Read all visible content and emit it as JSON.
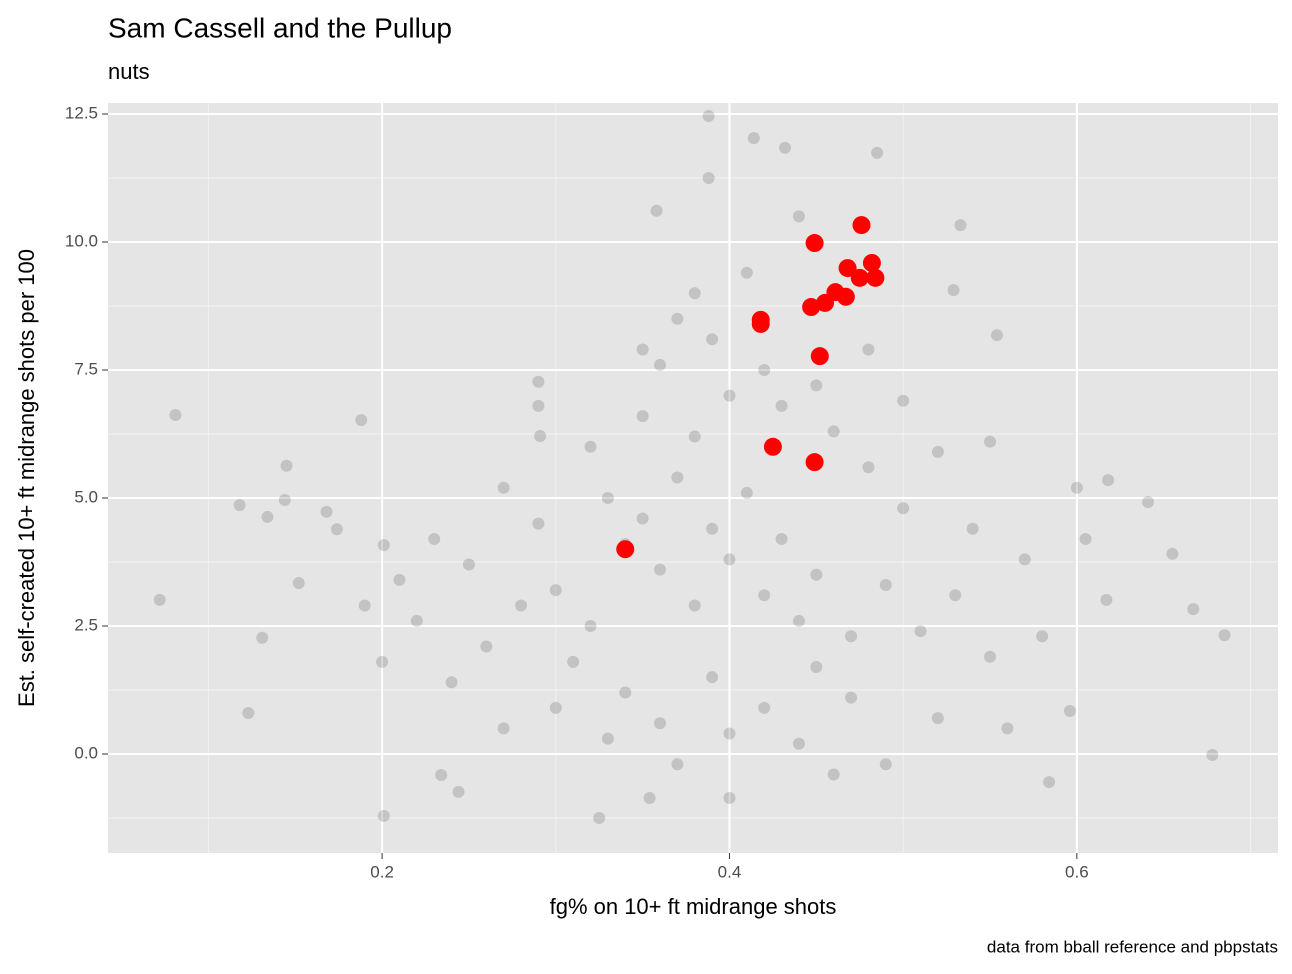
{
  "chart_data": {
    "type": "scatter",
    "title": "Sam Cassell and the Pullup",
    "subtitle": "nuts",
    "x_label": "fg% on 10+ ft midrange shots",
    "y_label": "Est. self-created 10+ ft midrange shots per 100",
    "caption": "data from bball reference and pbpstats",
    "xlim": [
      0.0422,
      0.7158
    ],
    "ylim": [
      -1.934,
      12.715
    ],
    "xticks": [
      0.2,
      0.4,
      0.6
    ],
    "yticks": [
      {
        "value": 0,
        "label": "0.0"
      },
      2.5,
      {
        "value": 5,
        "label": "5.0"
      },
      7.5,
      {
        "value": 10,
        "label": "10.0"
      },
      12.5
    ],
    "xminorticks": [
      0.1,
      0.3,
      0.5,
      0.7
    ],
    "yminorticks": [
      -1.25,
      1.25,
      3.75,
      6.25,
      8.75,
      11.25
    ],
    "grid": true,
    "series": [
      {
        "color": "#000000",
        "opacity": 0.15,
        "x": [
          0.072,
          0.081,
          0.118,
          0.123,
          0.134,
          0.144,
          0.145,
          0.131,
          0.152,
          0.168,
          0.174,
          0.188,
          0.201,
          0.201,
          0.678,
          0.685,
          0.667,
          0.655,
          0.641,
          0.618,
          0.617,
          0.605,
          0.596,
          0.584,
          0.533,
          0.529,
          0.554,
          0.388,
          0.414,
          0.485,
          0.432,
          0.388,
          0.358,
          0.325,
          0.4,
          0.354,
          0.291,
          0.29,
          0.244,
          0.234,
          0.3,
          0.32,
          0.34,
          0.36,
          0.38,
          0.4,
          0.42,
          0.44,
          0.33,
          0.35,
          0.37,
          0.39,
          0.41,
          0.43,
          0.45,
          0.31,
          0.34,
          0.36,
          0.39,
          0.42,
          0.45,
          0.47,
          0.28,
          0.26,
          0.25,
          0.29,
          0.27,
          0.32,
          0.35,
          0.38,
          0.4,
          0.43,
          0.46,
          0.48,
          0.5,
          0.49,
          0.51,
          0.47,
          0.44,
          0.4,
          0.37,
          0.33,
          0.3,
          0.24,
          0.22,
          0.23,
          0.27,
          0.29,
          0.36,
          0.39,
          0.42,
          0.45,
          0.48,
          0.5,
          0.52,
          0.54,
          0.53,
          0.55,
          0.52,
          0.49,
          0.46,
          0.38,
          0.41,
          0.44,
          0.37,
          0.35,
          0.55,
          0.57,
          0.58,
          0.56,
          0.21,
          0.2,
          0.19,
          0.6
        ],
        "values": [
          3.01,
          6.62,
          4.86,
          0.8,
          4.63,
          4.96,
          5.63,
          2.27,
          3.34,
          4.73,
          4.39,
          6.52,
          -1.21,
          4.08,
          -0.02,
          2.32,
          2.83,
          3.91,
          4.92,
          5.35,
          3.01,
          4.2,
          0.84,
          -0.55,
          10.33,
          9.06,
          8.18,
          12.46,
          12.03,
          11.74,
          11.84,
          11.25,
          10.61,
          -1.25,
          -0.86,
          -0.86,
          6.21,
          7.27,
          -0.74,
          -0.41,
          3.2,
          2.5,
          4.1,
          3.6,
          2.9,
          3.8,
          3.1,
          2.6,
          5.0,
          4.6,
          5.4,
          4.4,
          5.1,
          4.2,
          3.5,
          1.8,
          1.2,
          0.6,
          1.5,
          0.9,
          1.7,
          2.3,
          2.9,
          2.1,
          3.7,
          4.5,
          5.2,
          6.0,
          6.6,
          6.2,
          7.0,
          6.8,
          6.3,
          5.6,
          4.8,
          3.3,
          2.4,
          1.1,
          0.2,
          0.4,
          -0.2,
          0.3,
          0.9,
          1.4,
          2.6,
          4.2,
          0.5,
          6.8,
          7.6,
          8.1,
          7.5,
          7.2,
          7.9,
          6.9,
          5.9,
          4.4,
          3.1,
          1.9,
          0.7,
          -0.2,
          -0.4,
          9.0,
          9.4,
          10.5,
          8.5,
          7.9,
          6.1,
          3.8,
          2.3,
          0.5,
          3.4,
          1.8,
          2.9,
          5.2
        ]
      },
      {
        "color": "#ff0000",
        "opacity": 1,
        "x": [
          0.34,
          0.425,
          0.449,
          0.452,
          0.418,
          0.418,
          0.449,
          0.476,
          0.468,
          0.482,
          0.484,
          0.475,
          0.467,
          0.461,
          0.455,
          0.447
        ],
        "values": [
          4.0,
          6.0,
          5.7,
          7.77,
          8.48,
          8.4,
          9.98,
          10.33,
          9.49,
          9.59,
          9.3,
          9.3,
          8.93,
          9.02,
          8.81,
          8.73
        ]
      }
    ]
  }
}
